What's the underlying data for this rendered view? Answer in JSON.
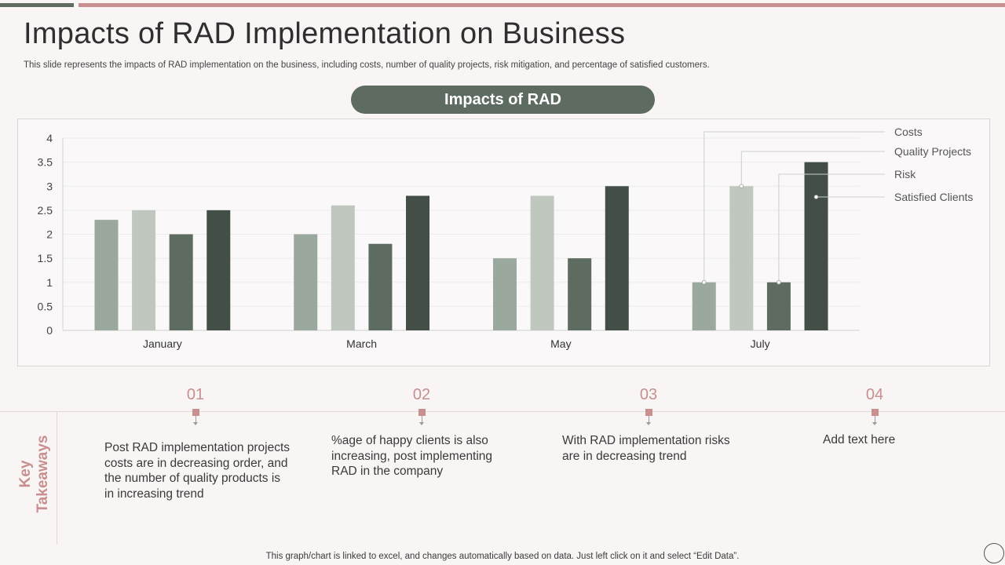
{
  "page": {
    "title": "Impacts of RAD Implementation on Business",
    "subtitle": "This slide represents the impacts of RAD implementation on the business, including costs, number of quality projects, risk mitigation, and percentage of satisfied customers.",
    "footer": "This graph/chart is linked to excel,  and changes automatically based on data. Just left click on it and select “Edit Data”."
  },
  "colors": {
    "accent_pink": "#c78f8f",
    "accent_green": "#5e6b61",
    "series": [
      "#9ba89e",
      "#bfc7bf",
      "#5e6b61",
      "#434f46"
    ]
  },
  "chart_data": {
    "type": "bar",
    "title": "Impacts of RAD",
    "categories": [
      "January",
      "March",
      "May",
      "July"
    ],
    "series": [
      {
        "name": "Costs",
        "values": [
          2.3,
          2.0,
          1.5,
          1.0
        ]
      },
      {
        "name": "Quality Projects",
        "values": [
          2.5,
          2.6,
          2.8,
          3.0
        ]
      },
      {
        "name": "Risk",
        "values": [
          2.0,
          1.8,
          1.5,
          1.0
        ]
      },
      {
        "name": "Satisfied Clients",
        "values": [
          2.5,
          2.8,
          3.0,
          3.5
        ]
      }
    ],
    "yticks": [
      "0",
      "0.5",
      "1",
      "1.5",
      "2",
      "2.5",
      "3",
      "3.5",
      "4"
    ],
    "ylim": [
      0,
      4
    ],
    "xlabel": "",
    "ylabel": "",
    "grid": true,
    "legend_placement": "right, callouts pointing to July bars"
  },
  "takeaways": {
    "label_line1": "Key",
    "label_line2": "Takeaways",
    "items": [
      {
        "num": "01",
        "text": "Post RAD implementation projects costs are in decreasing order, and the number of quality products is in increasing trend"
      },
      {
        "num": "02",
        "text": "%age of happy clients is also increasing, post implementing RAD in the company"
      },
      {
        "num": "03",
        "text": "With RAD implementation risks are in decreasing trend"
      },
      {
        "num": "04",
        "text": "Add text here"
      }
    ]
  }
}
